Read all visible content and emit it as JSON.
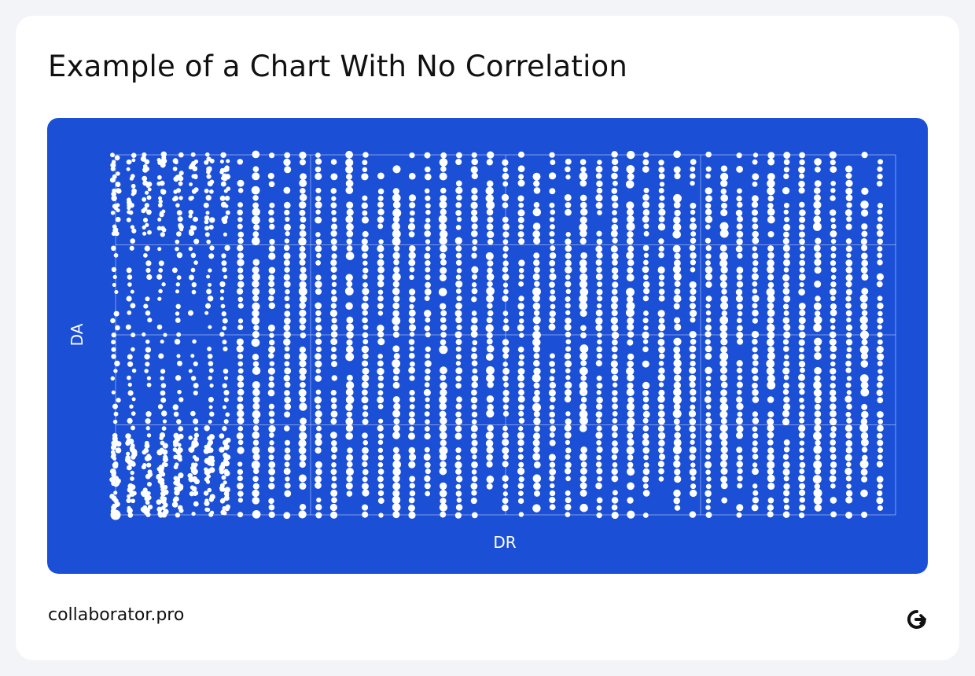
{
  "header": {
    "title": "Example of a Chart With No Correlation"
  },
  "footer": {
    "brand": "collaborator.pro",
    "logo_icon": "collaborator-logo-icon"
  },
  "colors": {
    "card_background": "#ffffff",
    "panel_background": "#1a4fd6",
    "marker": "#ffffff",
    "text": "#111111"
  },
  "chart_data": {
    "type": "scatter",
    "title": "",
    "xlabel": "DR",
    "ylabel": "DA",
    "xlim": [
      0,
      100
    ],
    "ylim": [
      0,
      100
    ],
    "grid": true,
    "tick_labels_shown": false,
    "legend": "none",
    "marker_color": "#ffffff",
    "point_density": {
      "x_columns": [
        0,
        2,
        4,
        6,
        8,
        10,
        12,
        14,
        16,
        18,
        20,
        22,
        24,
        26,
        28,
        30,
        32,
        34,
        36,
        38,
        40,
        42,
        44,
        46,
        48,
        50,
        52,
        54,
        56,
        58,
        60,
        62,
        64,
        66,
        68,
        70,
        72,
        74,
        76,
        78,
        80,
        82,
        84,
        86,
        88,
        90,
        92,
        94,
        96,
        98
      ],
      "y_step": 2,
      "description_of_distribution": "points fill the whole DR/DA range, densest where both DR and DA are low"
    }
  }
}
